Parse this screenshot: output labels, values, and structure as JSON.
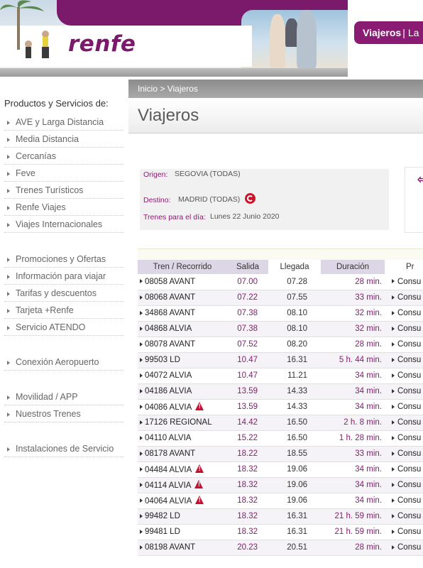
{
  "header": {
    "logo_text": "renfe",
    "nav_active": "Viajeros",
    "nav_separator": "|",
    "nav_next": "La"
  },
  "breadcrumb": "Inicio > Viajeros",
  "page_title": "Viajeros",
  "sidebar": {
    "heading": "Productos y Servicios de:",
    "groups": [
      [
        "AVE y Larga Distancia",
        "Media Distancia",
        "Cercanías",
        "Feve",
        "Trenes Turísticos",
        "Renfe Viajes",
        "Viajes Internacionales"
      ],
      [
        "Promociones y Ofertas",
        "Información para viajar",
        "Tarifas y descuentos",
        "Tarjeta +Renfe",
        "Servicio ATENDO"
      ],
      [
        "Conexión Aeropuerto"
      ],
      [
        "Movilidad / APP",
        "Nuestros Trenes"
      ],
      [
        "Instalaciones de Servicio"
      ]
    ]
  },
  "search": {
    "origin_label": "Origen:",
    "origin_value": "SEGOVIA (TODAS)",
    "destination_label": "Destino:",
    "destination_value": "MADRID (TODAS)",
    "date_label": "Trenes para el día:",
    "date_value": "Lunes  22  Junio  2020"
  },
  "table": {
    "headers": [
      "Tren / Recorrido",
      "Salida",
      "Llegada",
      "Duración",
      "Pr"
    ],
    "rows": [
      {
        "train": "08058 AVANT",
        "dep": "07.00",
        "arr": "07.28",
        "dur": "28 min.",
        "action": "Consu",
        "warn": false
      },
      {
        "train": "08068 AVANT",
        "dep": "07.22",
        "arr": "07.55",
        "dur": "33 min.",
        "action": "Consu",
        "warn": false
      },
      {
        "train": "34868 AVANT",
        "dep": "07.38",
        "arr": "08.10",
        "dur": "32 min.",
        "action": "Consu",
        "warn": false
      },
      {
        "train": "04868 ALVIA",
        "dep": "07.38",
        "arr": "08.10",
        "dur": "32 min.",
        "action": "Consu",
        "warn": false
      },
      {
        "train": "08078 AVANT",
        "dep": "07.52",
        "arr": "08.20",
        "dur": "28 min.",
        "action": "Consu",
        "warn": false
      },
      {
        "train": "99503 LD",
        "dep": "10.47",
        "arr": "16.31",
        "dur": "5 h. 44 min.",
        "action": "Consu",
        "warn": false
      },
      {
        "train": "04072 ALVIA",
        "dep": "10.47",
        "arr": "11.21",
        "dur": "34 min.",
        "action": "Consu",
        "warn": false
      },
      {
        "train": "04186 ALVIA",
        "dep": "13.59",
        "arr": "14.33",
        "dur": "34 min.",
        "action": "Consu",
        "warn": false
      },
      {
        "train": "04086 ALVIA",
        "dep": "13.59",
        "arr": "14.33",
        "dur": "34 min.",
        "action": "Consu",
        "warn": true
      },
      {
        "train": "17126 REGIONAL",
        "dep": "14.42",
        "arr": "16.50",
        "dur": "2 h. 8 min.",
        "action": "Consu",
        "warn": false
      },
      {
        "train": "04110 ALVIA",
        "dep": "15.22",
        "arr": "16.50",
        "dur": "1 h. 28 min.",
        "action": "Consu",
        "warn": false
      },
      {
        "train": "08178 AVANT",
        "dep": "18.22",
        "arr": "18.55",
        "dur": "33 min.",
        "action": "Consu",
        "warn": false
      },
      {
        "train": "04484 ALVIA",
        "dep": "18.32",
        "arr": "19.06",
        "dur": "34 min.",
        "action": "Consu",
        "warn": true
      },
      {
        "train": "04114 ALVIA",
        "dep": "18.32",
        "arr": "19.06",
        "dur": "34 min.",
        "action": "Consu",
        "warn": true
      },
      {
        "train": "04064 ALVIA",
        "dep": "18.32",
        "arr": "19.06",
        "dur": "34 min.",
        "action": "Consu",
        "warn": true
      },
      {
        "train": "99482 LD",
        "dep": "18.32",
        "arr": "16.31",
        "dur": "21 h. 59 min.",
        "action": "Consu",
        "warn": false
      },
      {
        "train": "99481 LD",
        "dep": "18.32",
        "arr": "16.31",
        "dur": "21 h. 59 min.",
        "action": "Consu",
        "warn": false
      },
      {
        "train": "08198 AVANT",
        "dep": "20.23",
        "arr": "20.51",
        "dur": "28 min.",
        "action": "Consu",
        "warn": false
      }
    ]
  }
}
